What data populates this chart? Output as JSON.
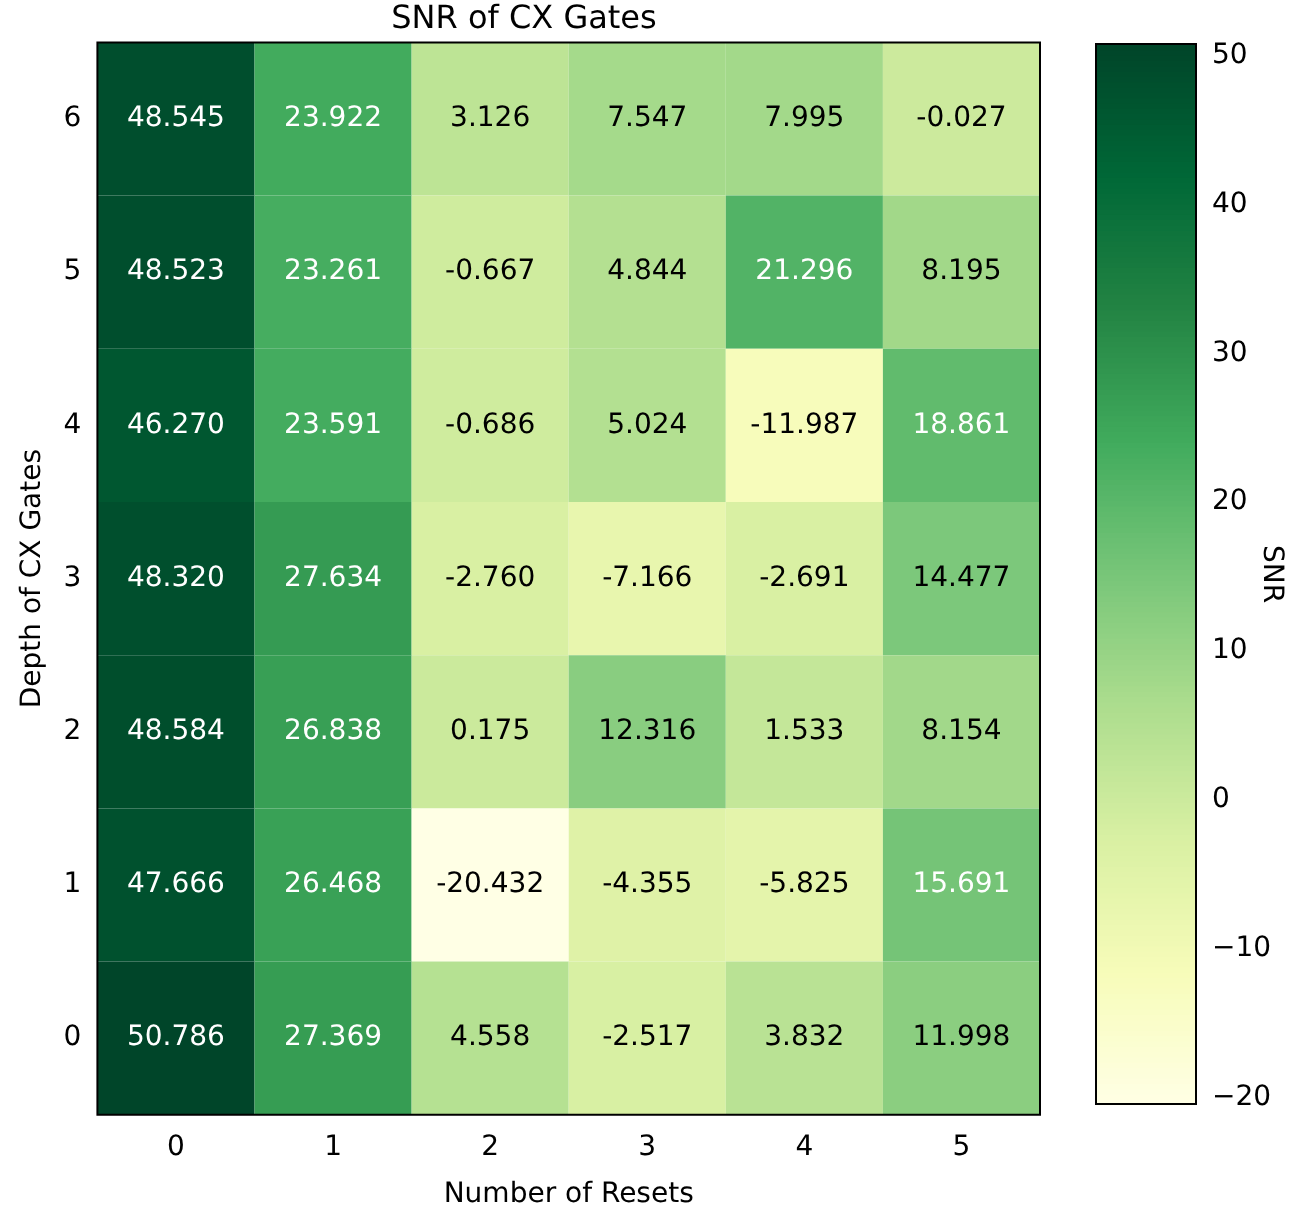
{
  "chart_data": {
    "type": "heatmap",
    "title": "SNR of CX Gates",
    "xlabel": "Number of Resets",
    "ylabel": "Depth of CX Gates",
    "clabel": "SNR",
    "categories": [
      "0",
      "1",
      "2",
      "3",
      "4",
      "5"
    ],
    "y_categories": [
      "6",
      "5",
      "4",
      "3",
      "2",
      "1",
      "0"
    ],
    "cells": [
      [
        48.545,
        23.922,
        3.126,
        7.547,
        7.995,
        -0.027
      ],
      [
        48.523,
        23.261,
        -0.667,
        4.844,
        21.296,
        8.195
      ],
      [
        46.27,
        23.591,
        -0.686,
        5.024,
        -11.987,
        18.861
      ],
      [
        48.32,
        27.634,
        -2.76,
        -7.166,
        -2.691,
        14.477
      ],
      [
        48.584,
        26.838,
        0.175,
        12.316,
        1.533,
        8.154
      ],
      [
        47.666,
        26.468,
        -20.432,
        -4.355,
        -5.825,
        15.691
      ],
      [
        50.786,
        27.369,
        4.558,
        -2.517,
        3.832,
        11.998
      ]
    ],
    "cell_labels": [
      [
        "48.545",
        "23.922",
        "3.126",
        "7.547",
        "7.995",
        "-0.027"
      ],
      [
        "48.523",
        "23.261",
        "-0.667",
        "4.844",
        "21.296",
        "8.195"
      ],
      [
        "46.270",
        "23.591",
        "-0.686",
        "5.024",
        "-11.987",
        "18.861"
      ],
      [
        "48.320",
        "27.634",
        "-2.760",
        "-7.166",
        "-2.691",
        "14.477"
      ],
      [
        "48.584",
        "26.838",
        "0.175",
        "12.316",
        "1.533",
        "8.154"
      ],
      [
        "47.666",
        "26.468",
        "-20.432",
        "-4.355",
        "-5.825",
        "15.691"
      ],
      [
        "50.786",
        "27.369",
        "4.558",
        "-2.517",
        "3.832",
        "11.998"
      ]
    ],
    "clim": [
      -20.432,
      50.786
    ],
    "cticks": [
      -20,
      -10,
      0,
      10,
      20,
      30,
      40,
      50
    ]
  }
}
